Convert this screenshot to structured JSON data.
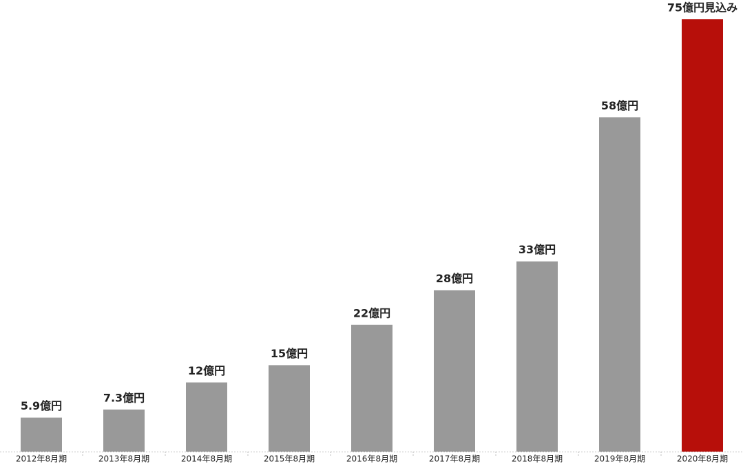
{
  "chart_data": {
    "type": "bar",
    "categories": [
      "2012年8月期",
      "2013年8月期",
      "2014年8月期",
      "2015年8月期",
      "2016年8月期",
      "2017年8月期",
      "2018年8月期",
      "2019年8月期",
      "2020年8月期"
    ],
    "values": [
      5.9,
      7.3,
      12,
      15,
      22,
      28,
      33,
      58,
      75
    ],
    "value_labels": [
      "5.9億円",
      "7.3億円",
      "12億円",
      "15億円",
      "22億円",
      "28億円",
      "33億円",
      "58億円",
      "75億円見込み"
    ],
    "colors": [
      "#999999",
      "#999999",
      "#999999",
      "#999999",
      "#999999",
      "#999999",
      "#999999",
      "#999999",
      "#b70f0a"
    ]
  }
}
